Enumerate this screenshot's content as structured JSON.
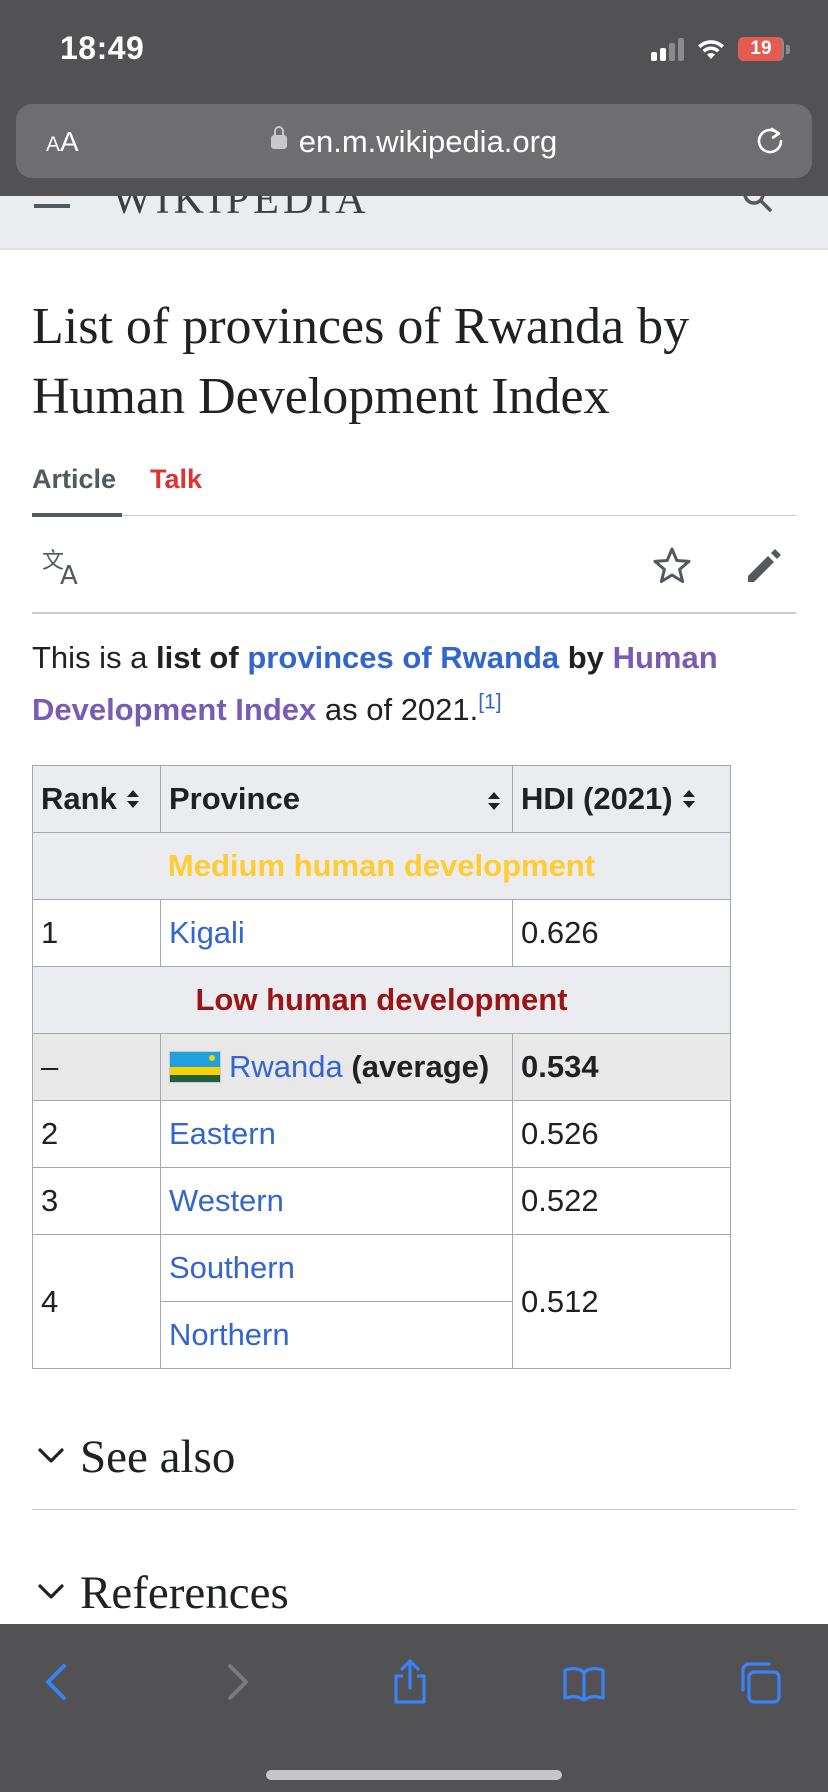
{
  "status_bar": {
    "time": "18:49",
    "battery": "19"
  },
  "browser": {
    "text_size_label_small": "A",
    "text_size_label_large": "A",
    "url": "en.m.wikipedia.org"
  },
  "wiki": {
    "wordmark": "WIKIPEDIA",
    "title": "List of provinces of Rwanda by Human Development Index",
    "tabs": {
      "article": "Article",
      "talk": "Talk"
    },
    "intro": {
      "t1": "This is a ",
      "t2": "list of",
      "link1": "provinces of Rwanda",
      "t3": "by",
      "link2": "Human Development Index",
      "t4": "as of 2021.",
      "ref": "[1]"
    },
    "table": {
      "headers": {
        "rank": "Rank",
        "province": "Province",
        "hdi": "HDI (2021)"
      },
      "group_medium": "Medium human development",
      "group_low": "Low human development",
      "rows": [
        {
          "rank": "1",
          "province": "Kigali",
          "hdi": "0.626"
        },
        {
          "rank": "–",
          "province": "Rwanda",
          "suffix": "(average)",
          "hdi": "0.534"
        },
        {
          "rank": "2",
          "province": "Eastern",
          "hdi": "0.526"
        },
        {
          "rank": "3",
          "province": "Western",
          "hdi": "0.522"
        },
        {
          "rank": "4",
          "province": "Southern",
          "province_b": "Northern",
          "hdi": "0.512"
        }
      ]
    },
    "sections": {
      "see_also": "See also",
      "references": "References"
    }
  },
  "colors": {
    "link": "#3366cc",
    "visited_link": "#795cb2",
    "talk_red": "#dd3333",
    "medium_group": "#ffcc33",
    "low_group": "#9a1515",
    "safari_blue": "#3a82f7"
  },
  "icons": [
    "lock-icon",
    "reload-icon",
    "menu-icon",
    "search-icon",
    "language-icon",
    "star-icon",
    "edit-icon",
    "chevron-down-icon",
    "rwanda-flag-icon",
    "back-icon",
    "forward-icon",
    "share-icon",
    "bookmarks-icon",
    "tabs-icon"
  ]
}
